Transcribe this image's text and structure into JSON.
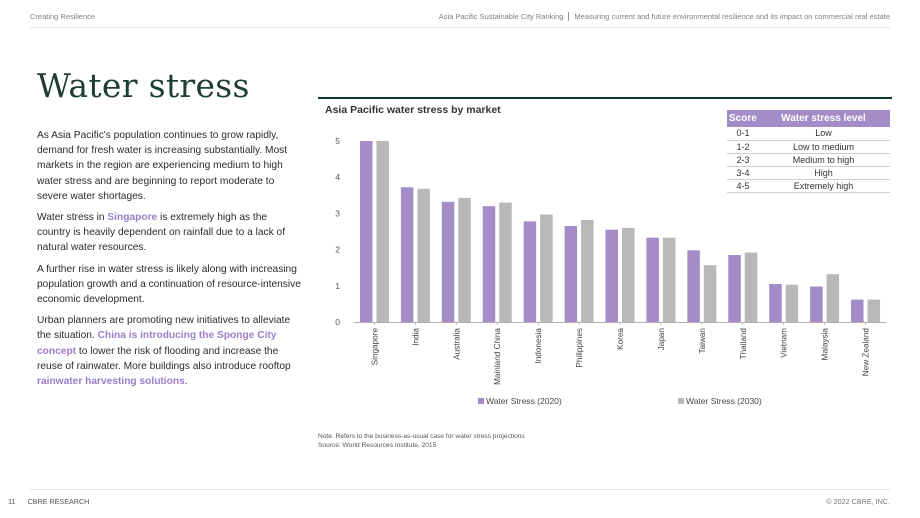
{
  "header": {
    "section": "Creating Resilience",
    "report": "Asia Pacific Sustainable City Ranking",
    "subtitle": "Measuring current and future environmental resilience and its impact on commercial real estate"
  },
  "page_title": "Water stress",
  "body": {
    "p1": "As Asia Pacific's population continues to grow rapidly, demand for fresh water is increasing substantially. Most markets in the region are experiencing medium to high water stress and are beginning to report moderate to severe water shortages.",
    "p2_a": "Water stress in ",
    "p2_hl": "Singapore",
    "p2_b": " is extremely high as the country is heavily dependent on rainfall due to a lack of natural water resources.",
    "p3": "A further rise in water stress is likely along with increasing population growth and a continuation of resource-intensive economic development.",
    "p4_a": "Urban planners are promoting new initiatives to alleviate the situation. ",
    "p4_hl1": "China is introducing the Sponge City concept",
    "p4_b": " to lower the risk of flooding and increase the reuse of rainwater. More buildings also introduce rooftop ",
    "p4_hl2": "rainwater harvesting solutions",
    "p4_c": "."
  },
  "score_table": {
    "headers": [
      "Score",
      "Water stress level"
    ],
    "rows": [
      [
        "0-1",
        "Low"
      ],
      [
        "1-2",
        "Low to medium"
      ],
      [
        "2-3",
        "Medium to high"
      ],
      [
        "3-4",
        "High"
      ],
      [
        "4-5",
        "Extremely high"
      ]
    ]
  },
  "chart_data": {
    "type": "bar",
    "title": "Asia Pacific water stress by market",
    "xlabel": "",
    "ylabel": "",
    "ylim": [
      0,
      5
    ],
    "yticks": [
      0,
      1,
      2,
      3,
      4,
      5
    ],
    "grid": false,
    "legend_position": "bottom",
    "categories": [
      "Singapore",
      "India",
      "Australia",
      "Mainland China",
      "Indonesia",
      "Philippines",
      "Korea",
      "Japan",
      "Taiwan",
      "Thailand",
      "Vietnam",
      "Malaysia",
      "New Zealand"
    ],
    "series": [
      {
        "name": "Water Stress (2020)",
        "color": "#a48cc8",
        "values": [
          5.0,
          3.72,
          3.32,
          3.2,
          2.78,
          2.65,
          2.55,
          2.33,
          1.98,
          1.85,
          1.05,
          0.98,
          0.62
        ]
      },
      {
        "name": "Water Stress (2030)",
        "color": "#b8b8b8",
        "values": [
          5.0,
          3.68,
          3.43,
          3.3,
          2.97,
          2.82,
          2.6,
          2.33,
          1.57,
          1.92,
          1.03,
          1.32,
          0.62
        ]
      }
    ]
  },
  "notes": {
    "note": "Note: Refers to the business-as-usual case for water stress projections",
    "source": "Source: World Resources Institute, 2015"
  },
  "footer": {
    "page_number": "11",
    "brand": "CBRE RESEARCH",
    "copyright": "© 2022 CBRE, INC."
  }
}
